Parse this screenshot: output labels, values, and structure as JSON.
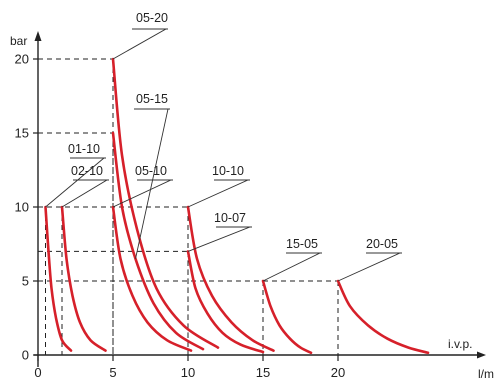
{
  "chart_data": {
    "type": "line",
    "xlabel": "l/min",
    "ylabel": "bar",
    "x_axis_note": "i.v.p.",
    "xlim": [
      -1,
      29.5
    ],
    "ylim": [
      0,
      21
    ],
    "x_ticks": [
      0,
      5,
      10,
      15,
      20
    ],
    "x_tick_labels": [
      "0",
      "5",
      "10",
      "15",
      "20"
    ],
    "y_ticks": [
      0,
      5,
      10,
      15,
      20
    ],
    "y_tick_labels": [
      "0",
      "5",
      "10",
      "15",
      "20"
    ],
    "grid": false,
    "series": [
      {
        "name": "01-10",
        "color": "#d6202a",
        "x": [
          0.5,
          0.7,
          0.9,
          1.2,
          1.6,
          2.2
        ],
        "y": [
          10,
          7,
          4.5,
          2.5,
          1,
          0.3
        ]
      },
      {
        "name": "02-10",
        "color": "#d6202a",
        "x": [
          1.6,
          1.9,
          2.3,
          2.8,
          3.5,
          4.5
        ],
        "y": [
          10,
          6.5,
          4,
          2.2,
          1,
          0.3
        ]
      },
      {
        "name": "05-10",
        "color": "#d6202a",
        "x": [
          5,
          5.5,
          6.3,
          7.3,
          8.6,
          10.2
        ],
        "y": [
          10,
          6.5,
          4,
          2.2,
          1,
          0.3
        ]
      },
      {
        "name": "05-15",
        "color": "#d6202a",
        "x": [
          5,
          5.6,
          6.5,
          7.7,
          9.2,
          11
        ],
        "y": [
          15,
          10,
          6.5,
          3.5,
          1.5,
          0.4
        ]
      },
      {
        "name": "05-20",
        "color": "#d6202a",
        "x": [
          5,
          5.6,
          6.6,
          7.9,
          9.7,
          12
        ],
        "y": [
          20,
          13.5,
          8.5,
          4.5,
          2,
          0.5
        ]
      },
      {
        "name": "10-07",
        "color": "#d6202a",
        "x": [
          10,
          10.5,
          11.3,
          12.3,
          13.5,
          15
        ],
        "y": [
          7,
          4.5,
          2.8,
          1.5,
          0.7,
          0.2
        ]
      },
      {
        "name": "10-10",
        "color": "#d6202a",
        "x": [
          10,
          10.6,
          11.6,
          12.9,
          14.3,
          15.7
        ],
        "y": [
          10,
          6.5,
          4,
          2.2,
          1,
          0.3
        ]
      },
      {
        "name": "15-05",
        "color": "#d6202a",
        "x": [
          15,
          15.5,
          16.1,
          16.8,
          17.5,
          18.2
        ],
        "y": [
          5,
          3.3,
          2,
          1.1,
          0.5,
          0.15
        ]
      },
      {
        "name": "20-05",
        "color": "#d6202a",
        "x": [
          20,
          20.8,
          22,
          23.3,
          24.7,
          26
        ],
        "y": [
          5,
          3.3,
          2,
          1.1,
          0.5,
          0.15
        ]
      }
    ],
    "reference_lines": [
      {
        "x": 5,
        "y": 20
      },
      {
        "x": 5,
        "y": 15
      },
      {
        "x": 10,
        "y": 10
      },
      {
        "x": 10,
        "y": 7
      },
      {
        "x": 20,
        "y": 5
      },
      {
        "x": 0.5,
        "y": 10
      },
      {
        "x": 1.6,
        "y": 10
      },
      {
        "x": 15,
        "y": 5
      }
    ],
    "curve_labels": [
      {
        "series": "05-20",
        "text": "05-20"
      },
      {
        "series": "05-15",
        "text": "05-15"
      },
      {
        "series": "01-10",
        "text": "01-10"
      },
      {
        "series": "02-10",
        "text": "02-10"
      },
      {
        "series": "05-10",
        "text": "05-10"
      },
      {
        "series": "10-10",
        "text": "10-10"
      },
      {
        "series": "10-07",
        "text": "10-07"
      },
      {
        "series": "15-05",
        "text": "15-05"
      },
      {
        "series": "20-05",
        "text": "20-05"
      }
    ]
  }
}
